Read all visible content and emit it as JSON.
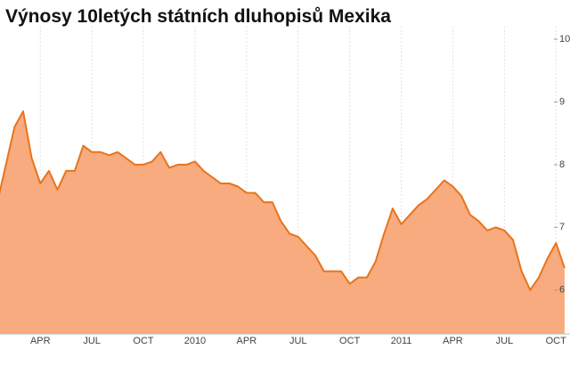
{
  "chart_data": {
    "type": "area",
    "title": "Výnosy 10letých státních dluhopisů Mexika",
    "categories": [
      null,
      null,
      null,
      null,
      null,
      "APR",
      null,
      null,
      null,
      null,
      null,
      "JUL",
      null,
      null,
      null,
      null,
      null,
      "OCT",
      null,
      null,
      null,
      null,
      null,
      "2010",
      null,
      null,
      null,
      null,
      null,
      "APR",
      null,
      null,
      null,
      null,
      null,
      "JUL",
      null,
      null,
      null,
      null,
      null,
      "OCT",
      null,
      null,
      null,
      null,
      null,
      "2011",
      null,
      null,
      null,
      null,
      null,
      "APR",
      null,
      null,
      null,
      null,
      null,
      "JUL",
      null,
      null,
      null,
      null,
      null,
      "OCT",
      null
    ],
    "values": [
      7.4,
      8.0,
      8.6,
      8.85,
      8.1,
      7.7,
      7.9,
      7.6,
      7.9,
      7.9,
      8.3,
      8.2,
      8.2,
      8.15,
      8.2,
      8.1,
      8.0,
      8.0,
      8.05,
      8.2,
      7.95,
      8.0,
      8.0,
      8.05,
      7.9,
      7.8,
      7.7,
      7.7,
      7.65,
      7.55,
      7.55,
      7.4,
      7.4,
      7.1,
      6.9,
      6.85,
      6.7,
      6.55,
      6.3,
      6.3,
      6.3,
      6.1,
      6.2,
      6.2,
      6.45,
      6.9,
      7.3,
      7.05,
      7.2,
      7.35,
      7.45,
      7.6,
      7.75,
      7.65,
      7.5,
      7.2,
      7.1,
      6.95,
      7.0,
      6.95,
      6.8,
      6.3,
      6.0,
      6.2,
      6.5,
      6.75,
      6.35
    ],
    "color": "#e8741c",
    "fill": "#f7ab7e",
    "ylim": [
      5.3,
      10.1
    ],
    "yticks": [
      6,
      7,
      8,
      9,
      10
    ],
    "grid": true
  }
}
